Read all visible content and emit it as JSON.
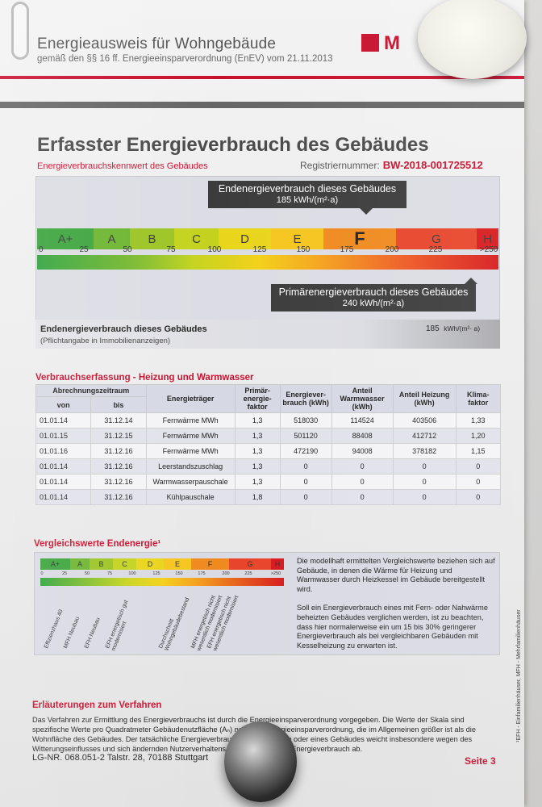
{
  "header": {
    "title": "Energieausweis für Wohngebäude",
    "subtitle": "gemäß den §§ 16 ff. Energieeinsparverordnung (EnEV) vom 21.11.2013",
    "logo_text": "M"
  },
  "section": {
    "title": "Erfasster Energieverbrauch des Gebäudes",
    "kennwert_label": "Energieverbrauchskennwert des Gebäudes",
    "reg_label": "Registriernummer:",
    "reg_number": "BW-2018-001725512"
  },
  "scale": {
    "classes": [
      "A+",
      "A",
      "B",
      "C",
      "D",
      "E",
      "F",
      "G",
      "H"
    ],
    "class_colors": [
      "#3aa43b",
      "#6cb52f",
      "#9cc424",
      "#c4d21e",
      "#e9d51b",
      "#f6c51f",
      "#f08a1f",
      "#e8452a",
      "#d7191c"
    ],
    "ticks": [
      "0",
      "25",
      "50",
      "75",
      "100",
      "125",
      "150",
      "175",
      "200",
      "225",
      ">250"
    ],
    "end_callout_title": "Endenergieverbrauch dieses Gebäudes",
    "end_callout_value": "185 kWh/(m²·a)",
    "prim_callout_title": "Primärenergieverbrauch dieses Gebäudes",
    "prim_callout_value": "240 kWh/(m²·a)",
    "end_value": 185,
    "prim_value": 240,
    "end_row_label": "Endenergieverbrauch dieses Gebäudes",
    "end_row_note": "(Pflichtangabe in Immobilienanzeigen)",
    "end_row_value": "185",
    "end_row_unit": "kWh/(m²· a)"
  },
  "consumption": {
    "title": "Verbrauchserfassung - Heizung und Warmwasser",
    "headers": {
      "period": "Abrechnungszeitraum",
      "from": "von",
      "to": "bis",
      "carrier": "Energieträger",
      "factor": "Primär-energie-faktor",
      "consumption": "Energiever-brauch (kWh)",
      "ww": "Anteil Warmwasser (kWh)",
      "heating": "Anteil Heizung (kWh)",
      "climate": "Klima-faktor"
    },
    "rows": [
      {
        "from": "01.01.14",
        "to": "31.12.14",
        "carrier": "Fernwärme MWh",
        "factor": "1,3",
        "total": "518030",
        "ww": "114524",
        "heat": "403506",
        "clim": "1,33"
      },
      {
        "from": "01.01.15",
        "to": "31.12.15",
        "carrier": "Fernwärme MWh",
        "factor": "1,3",
        "total": "501120",
        "ww": "88408",
        "heat": "412712",
        "clim": "1,20"
      },
      {
        "from": "01.01.16",
        "to": "31.12.16",
        "carrier": "Fernwärme MWh",
        "factor": "1,3",
        "total": "472190",
        "ww": "94008",
        "heat": "378182",
        "clim": "1,15"
      },
      {
        "from": "01.01.14",
        "to": "31.12.16",
        "carrier": "Leerstandszuschlag",
        "factor": "1,3",
        "total": "0",
        "ww": "0",
        "heat": "0",
        "clim": "0"
      },
      {
        "from": "01.01.14",
        "to": "31.12.16",
        "carrier": "Warmwasserpauschale",
        "factor": "1,3",
        "total": "0",
        "ww": "0",
        "heat": "0",
        "clim": "0"
      },
      {
        "from": "01.01.14",
        "to": "31.12.16",
        "carrier": "Kühlpauschale",
        "factor": "1,8",
        "total": "0",
        "ww": "0",
        "heat": "0",
        "clim": "0"
      }
    ]
  },
  "comparison": {
    "title": "Vergleichswerte Endenergie¹",
    "mini_ticks": [
      "0",
      "25",
      "50",
      "75",
      "100",
      "125",
      "150",
      "175",
      "200",
      "225",
      ">250"
    ],
    "building_labels": [
      "Effizienzhaus 40",
      "MFH Neubau",
      "EFH Neubau",
      "EFH energetisch gut modernisiert",
      "Durchschnitt Wohngebäudebestand",
      "MFH energetisch nicht wesentlich modernisiert",
      "EFH energetisch nicht wesentlich modernisiert"
    ],
    "text1": "Die modellhaft ermittelten Vergleichswerte beziehen sich auf Gebäude, in denen die Wärme für Heizung und Warmwasser durch Heizkessel im Gebäude bereitgestellt wird.",
    "text2": "Soll ein Energieverbrauch eines mit Fern- oder Nahwärme beheizten Gebäudes verglichen werden, ist zu beachten, dass hier normalerweise ein um 15 bis 30% geringerer Energieverbrauch als bei vergleichbaren Gebäuden mit Kesselheizung zu erwarten ist."
  },
  "explanation": {
    "title": "Erläuterungen zum Verfahren",
    "text": "Das Verfahren zur Ermittlung des Energieverbrauchs ist durch die Energieeinsparverordnung vorgegeben. Die Werte der Skala sind spezifische Werte pro Quadratmeter Gebäudenutzfläche (Aₙ) nach der Energieeinsparverordnung, die im Allgemeinen größer ist als die Wohnfläche des Gebäudes. Der tatsächliche Energieverbrauch einer Wohnung oder eines Gebäudes weicht insbesondere wegen des Witterungseinflusses und sich ändernden Nutzerverhaltens vom angegebenen Energieverbrauch ab."
  },
  "footer": {
    "left": "LG-NR. 068.051-2 Talstr. 28, 70188 Stuttgart",
    "right": "Seite 3",
    "side_note": "¹EFH - Einfamilienhäuser, MFH - Mehrfamilienhäuser"
  }
}
